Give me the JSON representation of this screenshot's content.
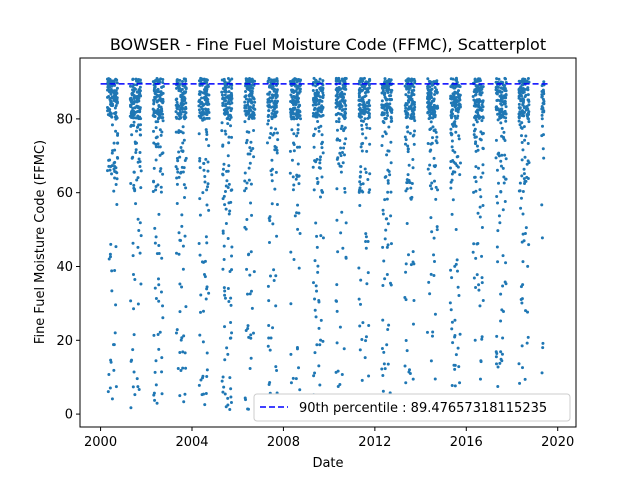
{
  "chart_data": {
    "type": "scatter",
    "title": "BOWSER - Fine Fuel Moisture Code (FFMC), Scatterplot",
    "xlabel": "Date",
    "ylabel": "Fine Fuel Moisture Code (FFMC)",
    "xlim": [
      1999.1,
      2020.8
    ],
    "ylim": [
      -3.5,
      96.5
    ],
    "x_ticks": [
      2000,
      2004,
      2008,
      2012,
      2016,
      2020
    ],
    "y_ticks": [
      0,
      20,
      40,
      60,
      80
    ],
    "grid": false,
    "legend_position": "lower-right",
    "series": [
      {
        "kind": "scatter",
        "color": "#1f77b4",
        "seasons": [
          {
            "start": 2000.3,
            "end": 2000.75
          },
          {
            "start": 2001.3,
            "end": 2001.78
          },
          {
            "start": 2002.3,
            "end": 2002.75
          },
          {
            "start": 2003.3,
            "end": 2003.75
          },
          {
            "start": 2004.3,
            "end": 2004.75
          },
          {
            "start": 2005.3,
            "end": 2005.75
          },
          {
            "start": 2006.3,
            "end": 2006.75
          },
          {
            "start": 2007.3,
            "end": 2007.75
          },
          {
            "start": 2008.3,
            "end": 2008.75
          },
          {
            "start": 2009.3,
            "end": 2009.75
          },
          {
            "start": 2010.3,
            "end": 2010.75
          },
          {
            "start": 2011.3,
            "end": 2011.78
          },
          {
            "start": 2012.3,
            "end": 2012.75
          },
          {
            "start": 2013.3,
            "end": 2013.75
          },
          {
            "start": 2014.3,
            "end": 2014.75
          },
          {
            "start": 2015.3,
            "end": 2015.75
          },
          {
            "start": 2016.3,
            "end": 2016.75
          },
          {
            "start": 2017.3,
            "end": 2017.75
          },
          {
            "start": 2018.3,
            "end": 2018.75
          },
          {
            "start": 2019.3,
            "end": 2019.4
          }
        ],
        "value_range": [
          1,
          94
        ]
      },
      {
        "kind": "hline",
        "name": "90th percentile : 89.47657318115235",
        "y": 89.47657318115235,
        "x_range": [
          2000.0,
          2019.6
        ],
        "color": "#0000ff",
        "style": "dashed"
      }
    ]
  }
}
